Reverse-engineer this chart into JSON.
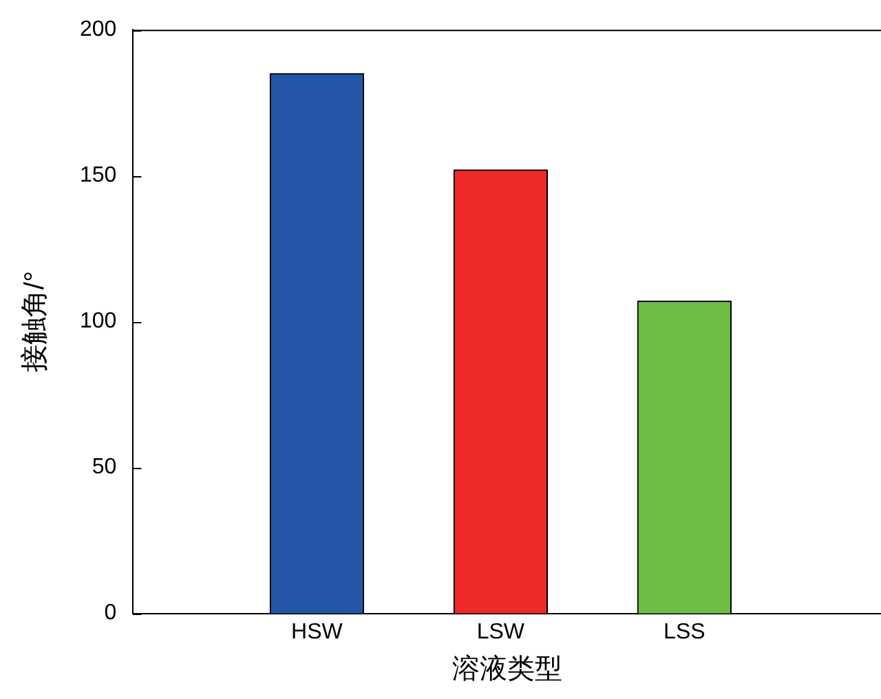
{
  "chart_data": {
    "type": "bar",
    "xlabel": "溶液类型",
    "ylabel": "接触角/°",
    "categories": [
      "HSW",
      "LSW",
      "LSS"
    ],
    "values": [
      185,
      152,
      107
    ],
    "colors": [
      "#2356a6",
      "#ee2a2a",
      "#6dbd45"
    ],
    "ylim": [
      0,
      200
    ],
    "yticks": [
      0,
      50,
      100,
      150,
      200
    ],
    "grid": false,
    "legend": false
  }
}
